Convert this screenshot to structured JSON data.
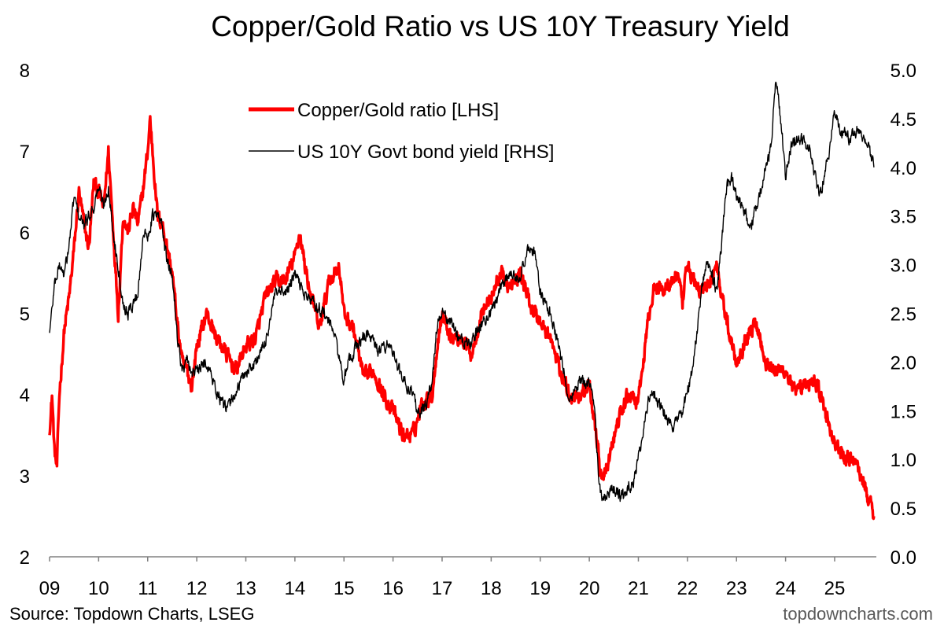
{
  "chart_data": {
    "type": "line",
    "title": "Copper/Gold Ratio vs US 10Y Treasury Yield",
    "x_ticks": [
      "09",
      "10",
      "11",
      "12",
      "13",
      "14",
      "15",
      "16",
      "17",
      "18",
      "19",
      "20",
      "21",
      "22",
      "23",
      "24",
      "25"
    ],
    "x_range": [
      2009,
      2025.85
    ],
    "y_left": {
      "range": [
        2,
        8
      ],
      "ticks": [
        "2",
        "3",
        "4",
        "5",
        "6",
        "7",
        "8"
      ]
    },
    "y_right": {
      "range": [
        0,
        5
      ],
      "ticks": [
        "0.0",
        "0.5",
        "1.0",
        "1.5",
        "2.0",
        "2.5",
        "3.0",
        "3.5",
        "4.0",
        "4.5",
        "5.0"
      ]
    },
    "legend_position": "top-center",
    "series": [
      {
        "name": "Copper/Gold ratio [LHS]",
        "axis": "left",
        "color": "#ff0000",
        "x": [
          2009.0,
          2009.05,
          2009.1,
          2009.15,
          2009.2,
          2009.3,
          2009.4,
          2009.5,
          2009.6,
          2009.7,
          2009.8,
          2009.9,
          2010.0,
          2010.1,
          2010.2,
          2010.3,
          2010.4,
          2010.5,
          2010.6,
          2010.7,
          2010.8,
          2010.9,
          2011.0,
          2011.05,
          2011.1,
          2011.2,
          2011.3,
          2011.4,
          2011.5,
          2011.6,
          2011.7,
          2011.8,
          2011.9,
          2012.0,
          2012.2,
          2012.4,
          2012.6,
          2012.8,
          2013.0,
          2013.2,
          2013.4,
          2013.6,
          2013.8,
          2014.0,
          2014.1,
          2014.2,
          2014.3,
          2014.5,
          2014.7,
          2014.9,
          2015.0,
          2015.2,
          2015.4,
          2015.6,
          2015.8,
          2016.0,
          2016.2,
          2016.4,
          2016.6,
          2016.8,
          2016.9,
          2017.0,
          2017.2,
          2017.4,
          2017.6,
          2017.8,
          2018.0,
          2018.2,
          2018.4,
          2018.6,
          2018.8,
          2019.0,
          2019.2,
          2019.4,
          2019.6,
          2019.8,
          2020.0,
          2020.15,
          2020.25,
          2020.4,
          2020.6,
          2020.8,
          2021.0,
          2021.2,
          2021.3,
          2021.5,
          2021.7,
          2021.8,
          2021.9,
          2022.0,
          2022.2,
          2022.4,
          2022.6,
          2022.8,
          2023.0,
          2023.2,
          2023.4,
          2023.6,
          2023.8,
          2024.0,
          2024.2,
          2024.4,
          2024.6,
          2024.8,
          2025.0,
          2025.2,
          2025.4,
          2025.6,
          2025.7,
          2025.8
        ],
        "y": [
          3.5,
          4.0,
          3.3,
          3.1,
          4.0,
          4.8,
          5.2,
          5.8,
          6.5,
          6.1,
          5.8,
          6.6,
          6.5,
          6.3,
          7.0,
          6.0,
          5.0,
          6.2,
          6.0,
          6.3,
          6.1,
          6.5,
          7.0,
          7.4,
          7.0,
          6.2,
          6.1,
          5.8,
          5.5,
          4.9,
          4.4,
          4.3,
          4.1,
          4.6,
          5.0,
          4.7,
          4.5,
          4.3,
          4.6,
          4.7,
          5.2,
          5.4,
          5.4,
          5.7,
          6.0,
          5.6,
          5.3,
          4.8,
          5.4,
          5.6,
          5.0,
          4.8,
          4.2,
          4.3,
          4.0,
          3.8,
          3.5,
          3.5,
          3.9,
          4.0,
          4.6,
          5.0,
          4.7,
          4.7,
          4.5,
          5.0,
          5.2,
          5.5,
          5.3,
          5.5,
          5.1,
          4.9,
          4.7,
          4.3,
          4.0,
          4.0,
          4.1,
          3.5,
          2.9,
          3.2,
          3.7,
          4.0,
          3.9,
          4.9,
          5.3,
          5.3,
          5.4,
          5.5,
          5.1,
          5.6,
          5.3,
          5.3,
          5.6,
          4.9,
          4.4,
          4.7,
          4.9,
          4.4,
          4.3,
          4.3,
          4.0,
          4.1,
          4.2,
          3.8,
          3.4,
          3.2,
          3.2,
          2.9,
          2.7,
          2.5
        ]
      },
      {
        "name": "US 10Y Govt bond yield [RHS]",
        "axis": "right",
        "color": "#000000",
        "x": [
          2009.0,
          2009.1,
          2009.2,
          2009.3,
          2009.4,
          2009.5,
          2009.6,
          2009.7,
          2009.8,
          2009.9,
          2010.0,
          2010.1,
          2010.2,
          2010.3,
          2010.4,
          2010.5,
          2010.6,
          2010.7,
          2010.8,
          2010.9,
          2011.0,
          2011.1,
          2011.2,
          2011.3,
          2011.4,
          2011.5,
          2011.6,
          2011.7,
          2011.8,
          2011.9,
          2012.0,
          2012.2,
          2012.4,
          2012.6,
          2012.8,
          2013.0,
          2013.2,
          2013.4,
          2013.6,
          2013.8,
          2014.0,
          2014.2,
          2014.4,
          2014.6,
          2014.8,
          2015.0,
          2015.1,
          2015.3,
          2015.5,
          2015.7,
          2015.9,
          2016.0,
          2016.2,
          2016.4,
          2016.5,
          2016.6,
          2016.7,
          2016.8,
          2016.9,
          2017.0,
          2017.2,
          2017.4,
          2017.6,
          2017.8,
          2018.0,
          2018.2,
          2018.4,
          2018.6,
          2018.8,
          2018.9,
          2019.0,
          2019.2,
          2019.4,
          2019.6,
          2019.8,
          2020.0,
          2020.1,
          2020.2,
          2020.3,
          2020.5,
          2020.7,
          2020.9,
          2021.0,
          2021.2,
          2021.3,
          2021.5,
          2021.7,
          2021.9,
          2022.0,
          2022.1,
          2022.2,
          2022.3,
          2022.4,
          2022.5,
          2022.6,
          2022.8,
          2022.9,
          2023.0,
          2023.2,
          2023.3,
          2023.5,
          2023.7,
          2023.8,
          2023.9,
          2024.0,
          2024.1,
          2024.3,
          2024.5,
          2024.6,
          2024.7,
          2024.9,
          2025.0,
          2025.1,
          2025.3,
          2025.5,
          2025.7,
          2025.8
        ],
        "y": [
          2.3,
          2.8,
          3.0,
          2.9,
          3.2,
          3.7,
          3.5,
          3.4,
          3.5,
          3.6,
          3.8,
          3.6,
          3.8,
          3.3,
          3.0,
          2.6,
          2.5,
          2.6,
          2.7,
          3.3,
          3.3,
          3.5,
          3.5,
          3.4,
          3.0,
          2.9,
          2.3,
          1.9,
          2.0,
          1.9,
          1.9,
          2.0,
          1.7,
          1.5,
          1.7,
          1.9,
          2.0,
          2.2,
          2.7,
          2.7,
          2.9,
          2.7,
          2.6,
          2.5,
          2.3,
          1.8,
          2.0,
          2.2,
          2.3,
          2.1,
          2.2,
          2.1,
          1.8,
          1.7,
          1.5,
          1.5,
          1.6,
          1.8,
          2.4,
          2.5,
          2.4,
          2.2,
          2.2,
          2.4,
          2.5,
          2.8,
          2.9,
          2.9,
          3.2,
          3.1,
          2.7,
          2.5,
          2.1,
          1.6,
          1.8,
          1.8,
          1.6,
          0.7,
          0.6,
          0.7,
          0.6,
          0.8,
          1.0,
          1.6,
          1.7,
          1.5,
          1.3,
          1.5,
          1.7,
          1.9,
          2.3,
          2.8,
          3.0,
          2.9,
          2.7,
          3.8,
          3.9,
          3.7,
          3.5,
          3.4,
          3.8,
          4.2,
          4.9,
          4.5,
          3.9,
          4.2,
          4.3,
          4.2,
          3.9,
          3.7,
          4.2,
          4.6,
          4.4,
          4.3,
          4.4,
          4.2,
          4.0
        ]
      }
    ],
    "source": "Source: Topdown Charts, LSEG",
    "watermark": "topdowncharts.com"
  }
}
